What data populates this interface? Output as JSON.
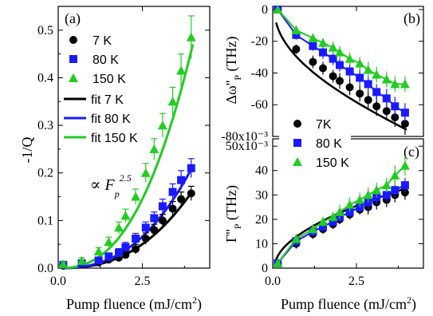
{
  "colors": {
    "k7": "#000000",
    "k80": "#1a1aff",
    "k150": "#22cc22"
  },
  "chart_data": [
    {
      "panel": "(a)",
      "type": "scatter",
      "xlabel": "Pump fluence (mJ/cm²)",
      "ylabel": "-1/Q",
      "xlim": [
        0,
        4.5
      ],
      "ylim": [
        0,
        0.55
      ],
      "xticks": [
        "0.0",
        "2.5"
      ],
      "yticks": [
        "0.0",
        "0.1",
        "0.2",
        "0.3",
        "0.4",
        "0.5"
      ],
      "annotation": "∝ F_p^2.5",
      "series": [
        {
          "name": "7 K",
          "marker": "circle",
          "x": [
            0.15,
            0.7,
            1.2,
            1.5,
            1.8,
            2.0,
            2.3,
            2.6,
            2.85,
            3.1,
            3.4,
            3.65,
            3.95
          ],
          "y": [
            0.005,
            0.008,
            0.012,
            0.018,
            0.022,
            0.028,
            0.04,
            0.062,
            0.08,
            0.1,
            0.125,
            0.145,
            0.157
          ],
          "err": [
            0.005,
            0.005,
            0.006,
            0.007,
            0.008,
            0.008,
            0.01,
            0.012,
            0.012,
            0.013,
            0.015,
            0.015,
            0.015
          ]
        },
        {
          "name": "80 K",
          "marker": "square",
          "x": [
            0.15,
            0.7,
            1.2,
            1.5,
            1.8,
            2.0,
            2.3,
            2.6,
            2.85,
            3.1,
            3.4,
            3.65,
            3.95
          ],
          "y": [
            0.007,
            0.01,
            0.016,
            0.024,
            0.032,
            0.044,
            0.062,
            0.085,
            0.105,
            0.13,
            0.16,
            0.185,
            0.21
          ],
          "err": [
            0.005,
            0.006,
            0.007,
            0.008,
            0.009,
            0.01,
            0.011,
            0.012,
            0.013,
            0.015,
            0.017,
            0.02,
            0.02
          ]
        },
        {
          "name": "150 K",
          "marker": "triangle",
          "x": [
            0.15,
            0.7,
            1.2,
            1.5,
            1.8,
            2.0,
            2.3,
            2.6,
            2.85,
            3.1,
            3.4,
            3.65,
            3.95
          ],
          "y": [
            0.008,
            0.015,
            0.035,
            0.055,
            0.085,
            0.11,
            0.15,
            0.2,
            0.25,
            0.3,
            0.35,
            0.415,
            0.485
          ],
          "err": [
            0.005,
            0.007,
            0.008,
            0.01,
            0.012,
            0.014,
            0.016,
            0.02,
            0.022,
            0.025,
            0.03,
            0.035,
            0.045
          ]
        },
        {
          "name": "fit 7 K",
          "type": "line",
          "form": "a*x^2.5",
          "a": 0.0051
        },
        {
          "name": "fit 80 K",
          "type": "line",
          "form": "a*x^2.5",
          "a": 0.0067
        },
        {
          "name": "fit 150 K",
          "type": "line",
          "form": "a*x^2.5",
          "a": 0.0147
        }
      ],
      "legend_position": "upper-left"
    },
    {
      "panel": "(b)",
      "type": "scatter",
      "xlabel": "",
      "ylabel": "Δω''_P (THz)",
      "ylim": [
        -0.08,
        0.002
      ],
      "yticks": [
        "0",
        "-20",
        "-40",
        "-60",
        "-80x10⁻³"
      ],
      "series": [
        {
          "name": "7K",
          "marker": "circle",
          "x": [
            0.15,
            0.7,
            1.2,
            1.5,
            1.8,
            2.0,
            2.3,
            2.6,
            2.85,
            3.1,
            3.4,
            3.65,
            3.95
          ],
          "y": [
            0.0,
            -0.025,
            -0.033,
            -0.037,
            -0.042,
            -0.045,
            -0.049,
            -0.053,
            -0.057,
            -0.061,
            -0.064,
            -0.068,
            -0.072
          ],
          "err": [
            0.002,
            0.003,
            0.004,
            0.004,
            0.004,
            0.005,
            0.005,
            0.005,
            0.005,
            0.006,
            0.006,
            0.006,
            0.007
          ]
        },
        {
          "name": "80 K",
          "marker": "square",
          "x": [
            0.15,
            0.7,
            1.2,
            1.5,
            1.8,
            2.0,
            2.3,
            2.6,
            2.85,
            3.1,
            3.4,
            3.65,
            3.95
          ],
          "y": [
            0.0,
            -0.016,
            -0.023,
            -0.027,
            -0.031,
            -0.035,
            -0.039,
            -0.043,
            -0.047,
            -0.052,
            -0.056,
            -0.061,
            -0.065
          ],
          "err": [
            0.002,
            0.003,
            0.003,
            0.004,
            0.004,
            0.004,
            0.005,
            0.005,
            0.005,
            0.005,
            0.006,
            0.006,
            0.006
          ]
        },
        {
          "name": "150 K",
          "marker": "triangle",
          "x": [
            0.15,
            0.7,
            1.2,
            1.5,
            1.8,
            2.0,
            2.3,
            2.6,
            2.85,
            3.1,
            3.4,
            3.65,
            3.95
          ],
          "y": [
            0.0,
            -0.013,
            -0.018,
            -0.021,
            -0.024,
            -0.027,
            -0.031,
            -0.034,
            -0.038,
            -0.041,
            -0.044,
            -0.047,
            -0.047
          ],
          "err": [
            0.002,
            0.003,
            0.003,
            0.003,
            0.004,
            0.004,
            0.004,
            0.004,
            0.005,
            0.005,
            0.005,
            0.005,
            0.005
          ]
        }
      ]
    },
    {
      "panel": "(c)",
      "type": "scatter",
      "xlabel": "Pump fluence (mJ/cm²)",
      "ylabel": "Γ''_P (THz)",
      "xlim": [
        0,
        4.5
      ],
      "ylim": [
        0,
        0.053
      ],
      "xticks": [
        "0.0",
        "2.5"
      ],
      "yticks": [
        "0",
        "10",
        "20",
        "30",
        "40",
        "50x10⁻³"
      ],
      "series": [
        {
          "name": "7K",
          "marker": "circle",
          "x": [
            0.15,
            0.7,
            1.2,
            1.5,
            1.8,
            2.0,
            2.3,
            2.6,
            2.85,
            3.1,
            3.4,
            3.65,
            3.95
          ],
          "y": [
            0.002,
            0.01,
            0.014,
            0.016,
            0.018,
            0.02,
            0.022,
            0.024,
            0.025,
            0.027,
            0.028,
            0.03,
            0.031
          ],
          "err": [
            0.002,
            0.002,
            0.002,
            0.002,
            0.002,
            0.002,
            0.002,
            0.002,
            0.003,
            0.003,
            0.003,
            0.003,
            0.003
          ]
        },
        {
          "name": "80 K",
          "marker": "square",
          "x": [
            0.15,
            0.7,
            1.2,
            1.5,
            1.8,
            2.0,
            2.3,
            2.6,
            2.85,
            3.1,
            3.4,
            3.65,
            3.95
          ],
          "y": [
            0.002,
            0.011,
            0.015,
            0.017,
            0.019,
            0.021,
            0.023,
            0.025,
            0.027,
            0.029,
            0.03,
            0.032,
            0.034
          ],
          "err": [
            0.002,
            0.002,
            0.002,
            0.002,
            0.002,
            0.002,
            0.002,
            0.002,
            0.003,
            0.003,
            0.003,
            0.003,
            0.003
          ]
        },
        {
          "name": "150 K",
          "marker": "triangle",
          "x": [
            0.15,
            0.7,
            1.2,
            1.5,
            1.8,
            2.0,
            2.3,
            2.6,
            2.85,
            3.1,
            3.4,
            3.65,
            3.95
          ],
          "y": [
            0.002,
            0.012,
            0.016,
            0.019,
            0.021,
            0.023,
            0.026,
            0.028,
            0.03,
            0.032,
            0.034,
            0.038,
            0.042
          ],
          "err": [
            0.002,
            0.002,
            0.002,
            0.002,
            0.002,
            0.003,
            0.003,
            0.003,
            0.003,
            0.003,
            0.003,
            0.004,
            0.004
          ]
        }
      ],
      "legend_position": "upper-left"
    }
  ]
}
